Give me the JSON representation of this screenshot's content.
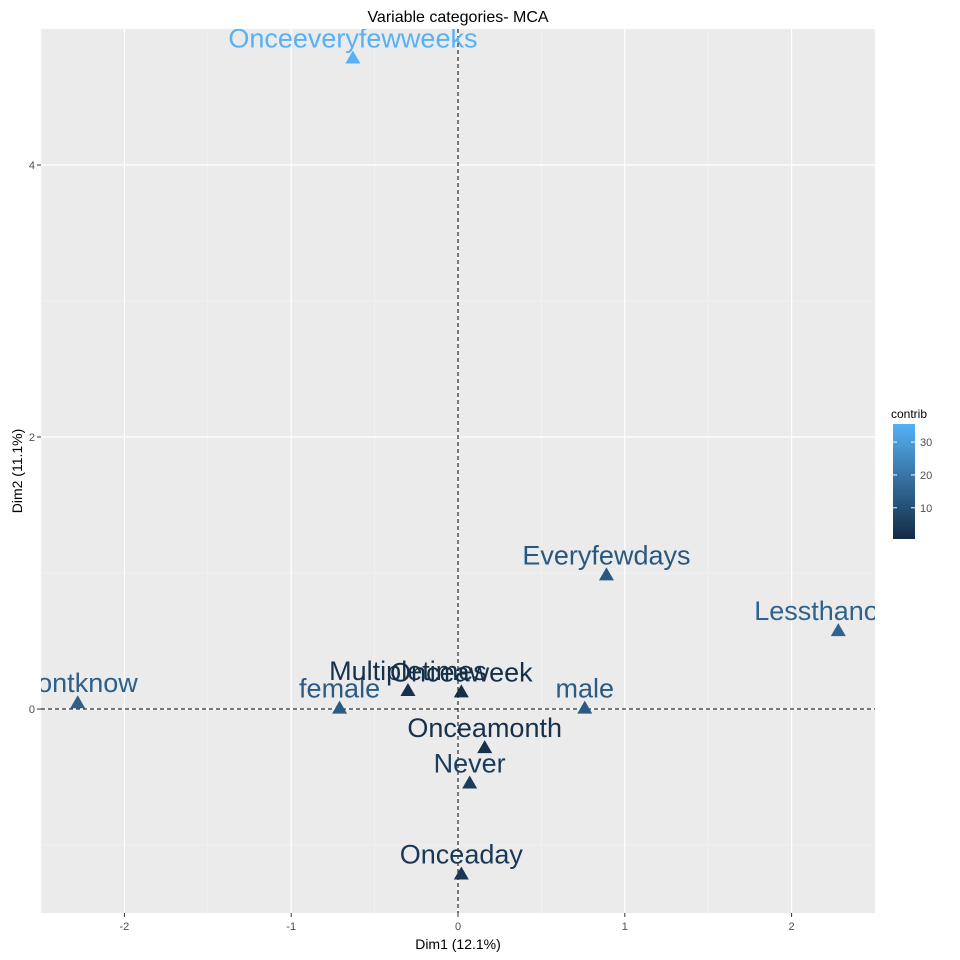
{
  "chart_data": {
    "type": "scatter",
    "title": "Variable categories- MCA",
    "xlabel": "Dim1 (12.1%)",
    "ylabel": "Dim2 (11.1%)",
    "xlim": [
      -2.5,
      2.5
    ],
    "ylim": [
      -1.5,
      5.0
    ],
    "x_ticks": [
      -2,
      -1,
      0,
      1,
      2
    ],
    "y_ticks": [
      0,
      2,
      4
    ],
    "grid": true,
    "reference_lines": {
      "x": 0,
      "y": 0,
      "style": "dashed"
    },
    "marker": "triangle",
    "legend": {
      "title": "contrib",
      "ticks": [
        10,
        20,
        30
      ],
      "range": [
        0.5,
        35.5
      ],
      "low_color": "#132B43",
      "high_color": "#56B1F7",
      "position": "right"
    },
    "points": [
      {
        "label": "Onceeveryfewweeks",
        "x": -0.63,
        "y": 4.79,
        "contrib": 35.5
      },
      {
        "label": "Everyfewdays",
        "x": 0.89,
        "y": 0.99,
        "contrib": 12
      },
      {
        "label": "Lessthanonce",
        "x": 2.28,
        "y": 0.58,
        "contrib": 15
      },
      {
        "label": "Dontknow",
        "x": -2.28,
        "y": 0.05,
        "contrib": 14
      },
      {
        "label": "female",
        "x": -0.71,
        "y": 0.01,
        "contrib": 13
      },
      {
        "label": "male",
        "x": 0.76,
        "y": 0.01,
        "contrib": 13
      },
      {
        "label": "Multipletimes",
        "x": -0.3,
        "y": 0.14,
        "contrib": 2
      },
      {
        "label": "Onceaweek",
        "x": 0.02,
        "y": 0.13,
        "contrib": 1.5
      },
      {
        "label": "Onceamonth",
        "x": 0.16,
        "y": -0.28,
        "contrib": 2
      },
      {
        "label": "Never",
        "x": 0.07,
        "y": -0.54,
        "contrib": 5
      },
      {
        "label": "Onceaday",
        "x": 0.02,
        "y": -1.21,
        "contrib": 4
      }
    ]
  }
}
